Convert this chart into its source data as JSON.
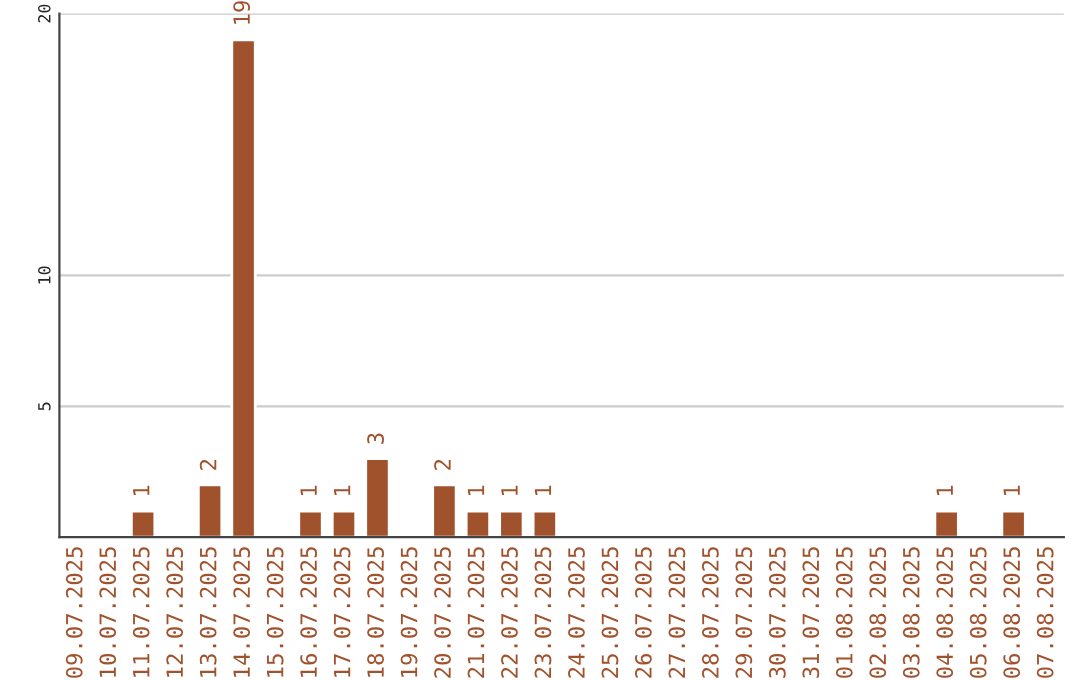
{
  "chart_data": {
    "type": "bar",
    "categories": [
      "09.07.2025",
      "10.07.2025",
      "11.07.2025",
      "12.07.2025",
      "13.07.2025",
      "14.07.2025",
      "15.07.2025",
      "16.07.2025",
      "17.07.2025",
      "18.07.2025",
      "19.07.2025",
      "20.07.2025",
      "21.07.2025",
      "22.07.2025",
      "23.07.2025",
      "24.07.2025",
      "25.07.2025",
      "26.07.2025",
      "27.07.2025",
      "28.07.2025",
      "29.07.2025",
      "30.07.2025",
      "31.07.2025",
      "01.08.2025",
      "02.08.2025",
      "03.08.2025",
      "04.08.2025",
      "05.08.2025",
      "06.08.2025",
      "07.08.2025"
    ],
    "values": [
      null,
      null,
      1,
      null,
      2,
      19,
      null,
      1,
      1,
      3,
      null,
      2,
      1,
      1,
      1,
      null,
      null,
      null,
      null,
      null,
      null,
      null,
      null,
      null,
      null,
      null,
      1,
      null,
      1,
      null
    ],
    "value_labels": [
      null,
      null,
      "1",
      null,
      "2",
      "19",
      null,
      "1",
      "1",
      "3",
      null,
      "2",
      "1",
      "1",
      "1",
      null,
      null,
      null,
      null,
      null,
      null,
      null,
      null,
      null,
      null,
      null,
      "1",
      null,
      "1",
      null
    ],
    "color": "#a0522d",
    "ylim": [
      0,
      20
    ],
    "yticks": [
      5,
      10,
      20
    ],
    "grid": "y"
  }
}
